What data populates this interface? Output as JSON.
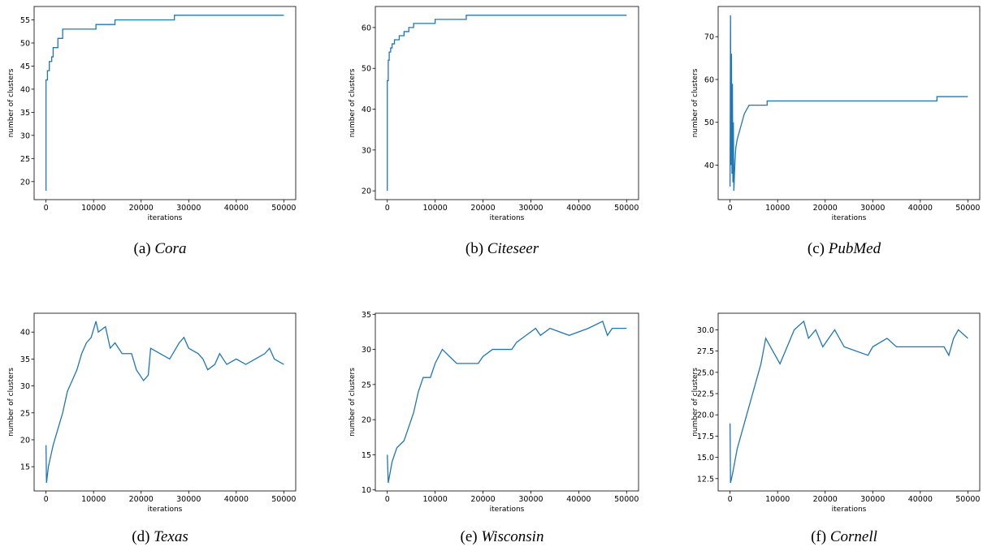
{
  "chart_data": [
    {
      "type": "line",
      "caption_label": "(a)",
      "caption_name": "Cora",
      "x_label": "iterations",
      "y_label": "number of clusters",
      "x": [
        0,
        0,
        300,
        300,
        700,
        700,
        1200,
        1200,
        1500,
        1500,
        2500,
        2500,
        3500,
        3500,
        10500,
        10500,
        14500,
        14500,
        27000,
        27000,
        50000
      ],
      "series": [
        {
          "color": "#1f77b4",
          "values": [
            18,
            42,
            42,
            44,
            44,
            46,
            46,
            47,
            47,
            49,
            49,
            51,
            51,
            53,
            53,
            54,
            54,
            55,
            55,
            56,
            56
          ]
        }
      ],
      "xlim": [
        -2500,
        52500
      ],
      "xticks": [
        0,
        10000,
        20000,
        30000,
        40000,
        50000
      ],
      "ylim": [
        16.1,
        57.9
      ],
      "yticks": [
        20,
        25,
        30,
        35,
        40,
        45,
        50,
        55
      ]
    },
    {
      "type": "line",
      "caption_label": "(b)",
      "caption_name": "Citeseer",
      "x_label": "iterations",
      "y_label": "number of clusters",
      "x": [
        0,
        0,
        200,
        200,
        400,
        400,
        700,
        700,
        1000,
        1000,
        1500,
        1500,
        2500,
        2500,
        3500,
        3500,
        4500,
        4500,
        5500,
        5500,
        10000,
        10000,
        16500,
        16500,
        50000
      ],
      "series": [
        {
          "color": "#1f77b4",
          "values": [
            20,
            47,
            47,
            52,
            52,
            54,
            54,
            55,
            55,
            56,
            56,
            57,
            57,
            58,
            58,
            59,
            59,
            60,
            60,
            61,
            61,
            62,
            62,
            63,
            63
          ]
        }
      ],
      "xlim": [
        -2500,
        52500
      ],
      "xticks": [
        0,
        10000,
        20000,
        30000,
        40000,
        50000
      ],
      "ylim": [
        17.85,
        65.15
      ],
      "yticks": [
        20,
        30,
        40,
        50,
        60
      ]
    },
    {
      "type": "line",
      "caption_label": "(c)",
      "caption_name": "PubMed",
      "x_label": "iterations",
      "y_label": "number of clusters",
      "x": [
        0,
        100,
        200,
        300,
        400,
        500,
        600,
        700,
        800,
        1000,
        1200,
        1500,
        2000,
        2500,
        3000,
        3500,
        4000,
        7800,
        7800,
        43500,
        43500,
        50000
      ],
      "series": [
        {
          "color": "#1f77b4",
          "values": [
            35,
            75,
            40,
            66,
            38,
            59,
            36,
            50,
            34,
            40,
            44,
            46,
            48,
            50,
            52,
            53,
            54,
            54,
            55,
            55,
            56,
            56
          ]
        }
      ],
      "xlim": [
        -2500,
        52500
      ],
      "xticks": [
        0,
        10000,
        20000,
        30000,
        40000,
        50000
      ],
      "ylim": [
        31.95,
        77.05
      ],
      "yticks": [
        40,
        50,
        60,
        70
      ]
    },
    {
      "type": "line",
      "caption_label": "(d)",
      "caption_name": "Texas",
      "x_label": "iterations",
      "y_label": "number of clusters",
      "x": [
        0,
        100,
        500,
        1000,
        1500,
        2500,
        3500,
        4500,
        5500,
        6500,
        7500,
        8500,
        9500,
        10500,
        11000,
        12500,
        13500,
        14500,
        16000,
        18000,
        19000,
        20500,
        21500,
        22000,
        24000,
        26000,
        28000,
        29000,
        30000,
        32000,
        33000,
        34000,
        35500,
        36500,
        38000,
        40000,
        42000,
        44000,
        46000,
        47000,
        48000,
        50000
      ],
      "series": [
        {
          "color": "#1f77b4",
          "values": [
            19,
            12,
            15,
            17,
            19,
            22,
            25,
            29,
            31,
            33,
            36,
            38,
            39,
            42,
            40,
            41,
            37,
            38,
            36,
            36,
            33,
            31,
            32,
            37,
            36,
            35,
            38,
            39,
            37,
            36,
            35,
            33,
            34,
            36,
            34,
            35,
            34,
            35,
            36,
            37,
            35,
            34
          ]
        }
      ],
      "xlim": [
        -2500,
        52500
      ],
      "xticks": [
        0,
        10000,
        20000,
        30000,
        40000,
        50000
      ],
      "ylim": [
        10.5,
        43.5
      ],
      "yticks": [
        15,
        20,
        25,
        30,
        35,
        40
      ]
    },
    {
      "type": "line",
      "caption_label": "(e)",
      "caption_name": "Wisconsin",
      "x_label": "iterations",
      "y_label": "number of clusters",
      "x": [
        0,
        200,
        1000,
        2000,
        3500,
        4500,
        5500,
        6500,
        7500,
        9000,
        10000,
        11500,
        13000,
        14500,
        19000,
        20000,
        22000,
        26000,
        27000,
        29000,
        31000,
        32000,
        34000,
        38000,
        42000,
        45000,
        46000,
        47000,
        50000
      ],
      "series": [
        {
          "color": "#1f77b4",
          "values": [
            15,
            11,
            14,
            16,
            17,
            19,
            21,
            24,
            26,
            26,
            28,
            30,
            29,
            28,
            28,
            29,
            30,
            30,
            31,
            32,
            33,
            32,
            33,
            32,
            33,
            34,
            32,
            33,
            33
          ]
        }
      ],
      "xlim": [
        -2500,
        52500
      ],
      "xticks": [
        0,
        10000,
        20000,
        30000,
        40000,
        50000
      ],
      "ylim": [
        9.85,
        35.15
      ],
      "yticks": [
        10,
        15,
        20,
        25,
        30,
        35
      ]
    },
    {
      "type": "line",
      "caption_label": "(f)",
      "caption_name": "Cornell",
      "x_label": "iterations",
      "y_label": "number of clusters",
      "x": [
        0,
        100,
        500,
        1500,
        2500,
        3500,
        4500,
        5500,
        6500,
        7500,
        8500,
        10500,
        12000,
        13500,
        15500,
        16500,
        18000,
        19500,
        22000,
        24000,
        29000,
        30000,
        33000,
        35000,
        45000,
        46000,
        47000,
        48000,
        50000
      ],
      "series": [
        {
          "color": "#1f77b4",
          "values": [
            19,
            12,
            13,
            16,
            18,
            20,
            22,
            24,
            26,
            29,
            28,
            26,
            28,
            30,
            31,
            29,
            30,
            28,
            30,
            28,
            27,
            28,
            29,
            28,
            28,
            27,
            29,
            30,
            29
          ]
        }
      ],
      "xlim": [
        -2500,
        52500
      ],
      "xticks": [
        0,
        10000,
        20000,
        30000,
        40000,
        50000
      ],
      "ylim": [
        11.05,
        31.95
      ],
      "yticks": [
        12.5,
        {
          "value": 15,
          "label": "15.0"
        },
        17.5,
        {
          "value": 20,
          "label": "20.0"
        },
        22.5,
        {
          "value": 25,
          "label": "25.0"
        },
        27.5,
        {
          "value": 30,
          "label": "30.0"
        }
      ]
    }
  ]
}
